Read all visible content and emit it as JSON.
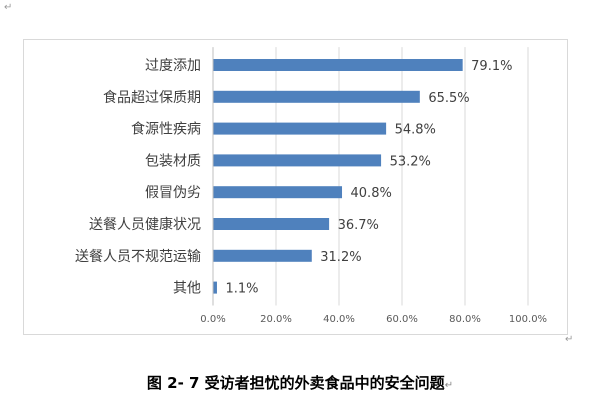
{
  "page": {
    "top_mark": "↵",
    "right_mark": "↵",
    "caption": "图 2- 7 受访者担忧的外卖食品中的安全问题",
    "caption_mark": "↵"
  },
  "chart_data": {
    "type": "bar",
    "orientation": "horizontal",
    "categories": [
      "过度添加",
      "食品超过保质期",
      "食源性疾病",
      "包装材质",
      "假冒伪劣",
      "送餐人员健康状况",
      "送餐人员不规范运输",
      "其他"
    ],
    "values": [
      79.1,
      65.5,
      54.8,
      53.2,
      40.8,
      36.7,
      31.2,
      1.1
    ],
    "data_labels": [
      "79.1%",
      "65.5%",
      "54.8%",
      "53.2%",
      "40.8%",
      "36.7%",
      "31.2%",
      "1.1%"
    ],
    "xlim": [
      0,
      100
    ],
    "x_ticks": [
      0,
      20,
      40,
      60,
      80,
      100
    ],
    "x_tick_labels": [
      "0.0%",
      "20.0%",
      "40.0%",
      "60.0%",
      "80.0%",
      "100.0%"
    ],
    "grid": true,
    "legend": "none",
    "bar_color": "#4f81bd",
    "grid_color": "#d9d9d9",
    "text_color": "#404040"
  }
}
